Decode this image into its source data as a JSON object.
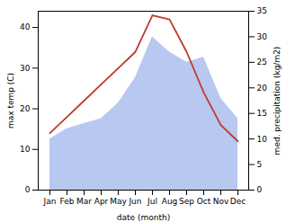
{
  "chart_data": {
    "type": "line",
    "categories": [
      "Jan",
      "Feb",
      "Mar",
      "Apr",
      "May",
      "Jun",
      "Jul",
      "Aug",
      "Sep",
      "Oct",
      "Nov",
      "Dec"
    ],
    "series": [
      {
        "type": "area",
        "axis": "y2",
        "color": "#b8c8f0",
        "values": [
          10,
          12,
          13,
          14,
          17,
          22,
          30,
          27,
          25,
          26,
          18,
          14
        ]
      },
      {
        "type": "line",
        "color": "#c0392b",
        "values": [
          14,
          18,
          22,
          26,
          30,
          34,
          43,
          42,
          34,
          24,
          16,
          12
        ]
      }
    ],
    "xlabel": "date (month)",
    "ylabel": "max temp (C)",
    "y2label": "med. precipitation (kg/m2)",
    "ylim": [
      0,
      44
    ],
    "yticks": [
      0,
      10,
      20,
      30,
      40
    ],
    "y2lim": [
      0,
      35
    ],
    "y2ticks": [
      0,
      5,
      10,
      15,
      20,
      25,
      30,
      35
    ],
    "grid": false
  }
}
